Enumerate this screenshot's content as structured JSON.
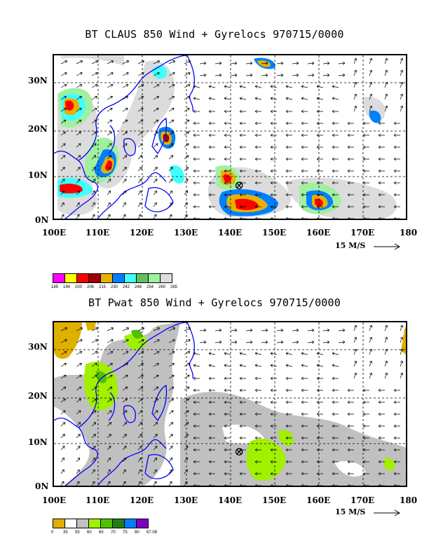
{
  "top": {
    "title": "BT CLAUS 850 Wind + Gyrelocs 970715/0000",
    "yticks": [
      "30N",
      "20N",
      "10N",
      "0N"
    ],
    "xticks": [
      "100E",
      "110E",
      "120E",
      "130E",
      "140E",
      "150E",
      "160E",
      "170E",
      "180"
    ],
    "wind_scale": "15 M/S",
    "legend_colors": [
      "#ff00ff",
      "#ffff00",
      "#ff0000",
      "#a00000",
      "#e8b000",
      "#0080ff",
      "#40ffff",
      "#60c060",
      "#a0f0a0",
      "#dcdcdc"
    ],
    "legend_labels": [
      "185",
      "194",
      "200",
      "206",
      "215",
      "230",
      "242",
      "248",
      "254",
      "260",
      "265"
    ],
    "gyre_marker": "⊗"
  },
  "bottom": {
    "title": "BT Pwat 850 Wind + Gyrelocs 970715/0000",
    "yticks": [
      "30N",
      "20N",
      "10N",
      "0N"
    ],
    "xticks": [
      "100E",
      "110E",
      "120E",
      "130E",
      "140E",
      "150E",
      "160E",
      "170E",
      "180"
    ],
    "wind_scale": "15 M/S",
    "legend_colors": [
      "#e0b000",
      "#ffffff",
      "#c0c0c0",
      "#a0f000",
      "#50c000",
      "#208010",
      "#0080ff",
      "#8000c0"
    ],
    "legend_labels": [
      "0",
      "35",
      "55",
      "60",
      "65",
      "70",
      "75",
      "80",
      "67.08"
    ],
    "gyre_marker": "⊗"
  }
}
